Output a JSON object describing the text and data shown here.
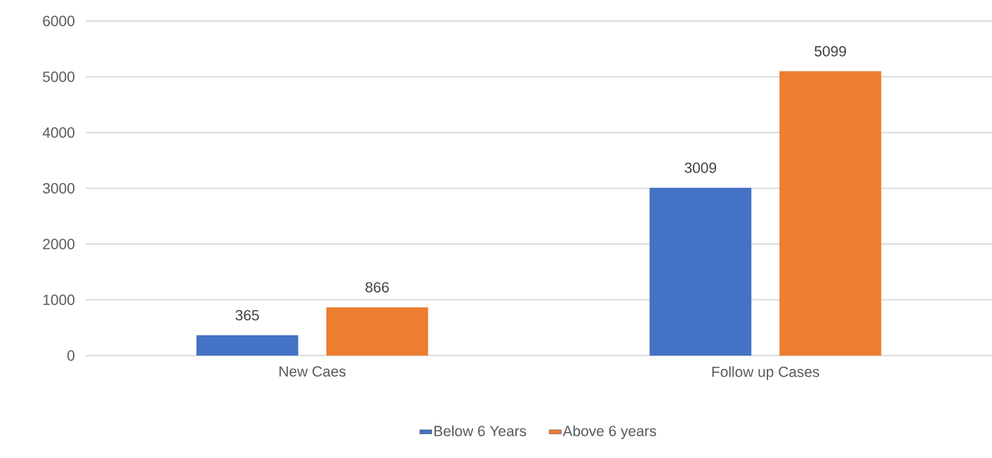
{
  "chart_data": {
    "type": "bar",
    "categories": [
      "New Caes",
      "Follow up Cases"
    ],
    "series": [
      {
        "name": "Below 6 Years",
        "color": "#4472c4",
        "values": [
          365,
          3009
        ]
      },
      {
        "name": "Above 6 years",
        "color": "#ed7d31",
        "values": [
          866,
          5099
        ]
      }
    ],
    "ylim": [
      0,
      6000
    ],
    "yticks": [
      0,
      1000,
      2000,
      3000,
      4000,
      5000,
      6000
    ],
    "grid": "y",
    "legend": "bottom",
    "data_labels": true
  }
}
